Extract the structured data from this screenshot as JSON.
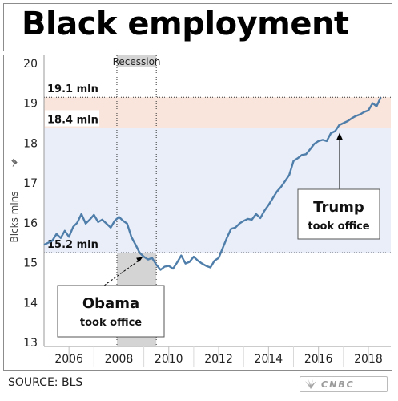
{
  "title": "Black employment",
  "source": "SOURCE: BLS",
  "logo_text": "CNBC",
  "colors": {
    "line": "#4f7eaa",
    "recession_band": "#d4d4d4",
    "trump_band": "#f9e5dc",
    "obama_band": "#e9eef9"
  },
  "chart_data": {
    "type": "line",
    "title": "Black employment",
    "ylabel": "Blcks mlns",
    "ylim": [
      12.9,
      20.2
    ],
    "xlim": [
      2005.0,
      2018.9
    ],
    "yticks": [
      13,
      14,
      15,
      16,
      17,
      18,
      19,
      20
    ],
    "xticks": [
      2006,
      2008,
      2010,
      2012,
      2014,
      2016,
      2018
    ],
    "recession": {
      "label": "Recession",
      "start": 2007.92,
      "end": 2009.5
    },
    "levels": [
      {
        "label": "19.1 mln",
        "value": 19.15
      },
      {
        "label": "18.4 mln",
        "value": 18.38
      },
      {
        "label": "15.2 mln",
        "value": 15.25
      }
    ],
    "annotations": [
      {
        "title": "Obama",
        "subtitle": "took office",
        "x": 2009.05,
        "y": 15.2
      },
      {
        "title": "Trump",
        "subtitle": "took office",
        "x": 2017.05,
        "y": 18.3
      }
    ],
    "series": [
      {
        "x": [
          2005.0,
          2005.17,
          2005.33,
          2005.5,
          2005.67,
          2005.83,
          2006.0,
          2006.17,
          2006.33,
          2006.5,
          2006.67,
          2006.83,
          2007.0,
          2007.17,
          2007.33,
          2007.5,
          2007.67,
          2007.83,
          2008.0,
          2008.17,
          2008.33,
          2008.5,
          2008.67,
          2008.83,
          2009.0,
          2009.17,
          2009.33,
          2009.5,
          2009.67,
          2009.83,
          2010.0,
          2010.17,
          2010.33,
          2010.5,
          2010.67,
          2010.83,
          2011.0,
          2011.17,
          2011.33,
          2011.5,
          2011.67,
          2011.83,
          2012.0,
          2012.17,
          2012.33,
          2012.5,
          2012.67,
          2012.83,
          2013.0,
          2013.17,
          2013.33,
          2013.5,
          2013.67,
          2013.83,
          2014.0,
          2014.17,
          2014.33,
          2014.5,
          2014.67,
          2014.83,
          2015.0,
          2015.17,
          2015.33,
          2015.5,
          2015.67,
          2015.83,
          2016.0,
          2016.17,
          2016.33,
          2016.5,
          2016.67,
          2016.83,
          2017.0,
          2017.17,
          2017.33,
          2017.5,
          2017.67,
          2017.83,
          2018.0,
          2018.17,
          2018.33,
          2018.5
        ],
        "y": [
          15.45,
          15.5,
          15.55,
          15.72,
          15.62,
          15.8,
          15.65,
          15.9,
          16.0,
          16.22,
          15.98,
          16.08,
          16.2,
          16.02,
          16.08,
          15.98,
          15.88,
          16.05,
          16.15,
          16.05,
          15.98,
          15.65,
          15.45,
          15.25,
          15.15,
          15.08,
          15.12,
          14.95,
          14.82,
          14.9,
          14.92,
          14.85,
          15.0,
          15.18,
          14.98,
          15.02,
          15.15,
          15.05,
          14.98,
          14.92,
          14.88,
          15.05,
          15.12,
          15.38,
          15.62,
          15.85,
          15.88,
          15.98,
          16.05,
          16.1,
          16.08,
          16.22,
          16.12,
          16.3,
          16.45,
          16.62,
          16.78,
          16.9,
          17.05,
          17.2,
          17.55,
          17.62,
          17.7,
          17.72,
          17.85,
          17.98,
          18.05,
          18.08,
          18.05,
          18.25,
          18.3,
          18.45,
          18.5,
          18.55,
          18.62,
          18.68,
          18.72,
          18.78,
          18.82,
          19.0,
          18.92,
          19.15
        ]
      }
    ]
  }
}
